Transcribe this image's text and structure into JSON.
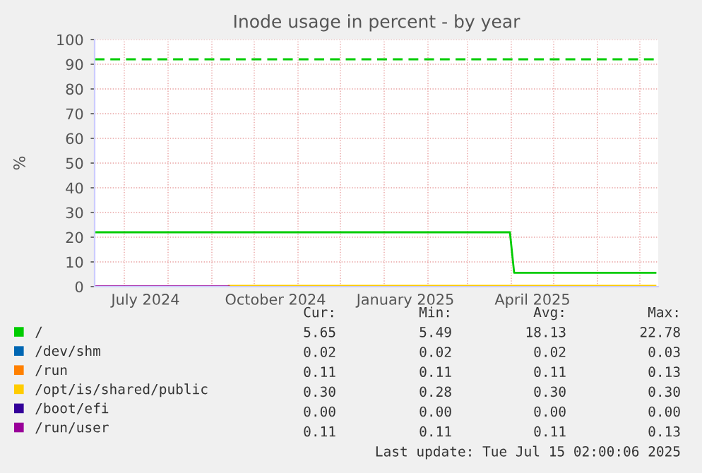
{
  "chart_data": {
    "type": "line",
    "title": "Inode usage in percent - by year",
    "ylabel": "%",
    "xlim": [
      "2024-06-10",
      "2025-07-14"
    ],
    "ylim": [
      0,
      100
    ],
    "yticks": [
      0,
      10,
      20,
      30,
      40,
      50,
      60,
      70,
      80,
      90,
      100
    ],
    "xticks": [
      {
        "value": "2024-07-01",
        "label": null
      },
      {
        "value": "2024-07-16",
        "label": "July 2024"
      },
      {
        "value": "2024-08-01",
        "label": null
      },
      {
        "value": "2024-09-01",
        "label": null
      },
      {
        "value": "2024-10-01",
        "label": null
      },
      {
        "value": "2024-10-16",
        "label": "October 2024"
      },
      {
        "value": "2024-11-01",
        "label": null
      },
      {
        "value": "2024-12-01",
        "label": null
      },
      {
        "value": "2025-01-01",
        "label": null
      },
      {
        "value": "2025-01-16",
        "label": "January 2025"
      },
      {
        "value": "2025-02-01",
        "label": null
      },
      {
        "value": "2025-03-01",
        "label": null
      },
      {
        "value": "2025-04-01",
        "label": null
      },
      {
        "value": "2025-04-16",
        "label": "April 2025"
      },
      {
        "value": "2025-05-01",
        "label": null
      },
      {
        "value": "2025-06-01",
        "label": null
      },
      {
        "value": "2025-07-01",
        "label": null
      }
    ],
    "grid": true,
    "legend": "bottom",
    "line_style": "solid",
    "series": [
      {
        "name": "/",
        "color": "#00cc00",
        "x": [
          "2024-06-10",
          "2025-03-31",
          "2025-04-03",
          "2025-07-12"
        ],
        "values": [
          22.0,
          22.0,
          5.6,
          5.6
        ]
      },
      {
        "name": "/dev/shm",
        "color": "#0066b3"
      },
      {
        "name": "/run",
        "color": "#ff8000"
      },
      {
        "name": "/opt/is/shared/public",
        "color": "#ffcc00",
        "x": [
          "2024-09-13",
          "2025-07-12"
        ],
        "values": [
          0.3,
          0.3
        ]
      },
      {
        "name": "/boot/efi",
        "color": "#330099"
      },
      {
        "name": "/run/user",
        "color": "#990099",
        "x": [
          "2024-06-10",
          "2024-09-13"
        ],
        "values": [
          0.1,
          0.1
        ]
      }
    ],
    "ref_lines": [
      {
        "axis": "y",
        "value": 92,
        "label": null,
        "color": "#00cc00",
        "line_style": "dashed"
      }
    ],
    "annotations": [
      "Cur: Min: Avg: Max:",
      "5.65 5.49 18.13 22.78",
      "0.02 0.02 0.02 0.03",
      "0.11 0.11 0.11 0.13",
      "0.30 0.28 0.30 0.30",
      "0.00 0.00 0.00 0.00",
      "0.11 0.11 0.11 0.13",
      "Last update: Tue Jul 15 02:00:06 2025"
    ]
  }
}
